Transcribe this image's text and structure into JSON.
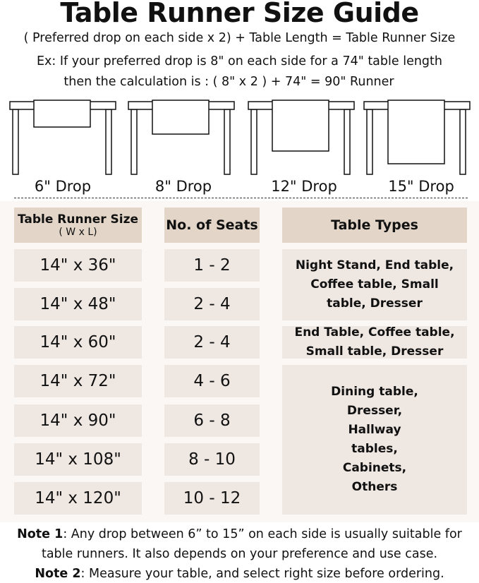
{
  "title": "Table Runner Size Guide",
  "formula": "( Preferred drop on each side x 2) + Table Length = Table Runner Size",
  "example_line1": "Ex: If your preferred drop is 8\" on each side for a 74\" table length",
  "example_line2": "then the calculation is : ( 8\" x 2 ) + 74\" = 90\" Runner",
  "drops": [
    {
      "label": "6\" Drop",
      "drop_in": 6
    },
    {
      "label": "8\" Drop",
      "drop_in": 8
    },
    {
      "label": "12\" Drop",
      "drop_in": 12
    },
    {
      "label": "15\" Drop",
      "drop_in": 15
    }
  ],
  "table": {
    "headers": {
      "size": "Table Runner Size",
      "size_sub": "( W x L)",
      "seats": "No. of Seats",
      "types": "Table Types"
    },
    "rows": [
      {
        "size": "14\" x 36\"",
        "seats": "1 - 2"
      },
      {
        "size": "14\" x 48\"",
        "seats": "2 - 4"
      },
      {
        "size": "14\" x 60\"",
        "seats": "2 - 4"
      },
      {
        "size": "14\" x 72\"",
        "seats": "4 - 6"
      },
      {
        "size": "14\" x 90\"",
        "seats": "6 - 8"
      },
      {
        "size": "14\" x 108\"",
        "seats": "8 - 10"
      },
      {
        "size": "14\" x 120\"",
        "seats": "10 - 12"
      }
    ],
    "types": [
      "Night Stand, End table, Coffee table, Small table, Dresser",
      "End Table, Coffee table, Small table, Dresser",
      "Dining table, Dresser, Hallway tables, Cabinets, Others"
    ]
  },
  "notes": [
    {
      "label": "Note 1",
      "text": ": Any drop between 6” to 15” on each side is usually suitable for table runners. It also depends on your preference and use case."
    },
    {
      "label": "Note 2",
      "text": ": Measure your table, and select right size before ordering."
    }
  ],
  "colors": {
    "header_cell": "#e3d6c8",
    "body_cell": "#efe7e2",
    "panel": "#faf7f4"
  }
}
